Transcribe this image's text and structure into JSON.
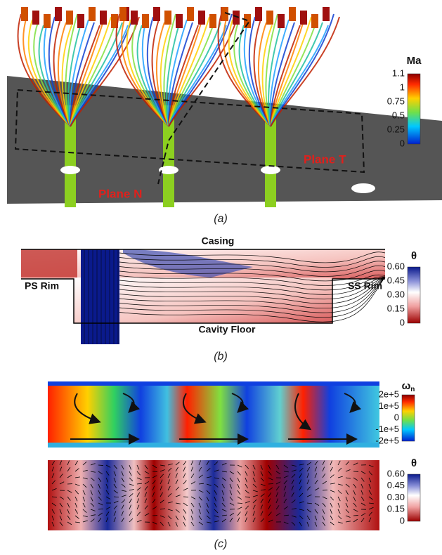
{
  "panel_a": {
    "caption": "(a)",
    "plane_n": "Plane N",
    "plane_t": "Plane T",
    "colorbar": {
      "title": "Ma",
      "ticks": [
        "1.1",
        "1",
        "0.75",
        "0.5",
        "0.25",
        "0"
      ]
    }
  },
  "panel_b": {
    "caption": "(b)",
    "top": "Casing",
    "left": "PS Rim",
    "right": "SS Rim",
    "bottom": "Cavity Floor",
    "colorbar": {
      "title": "θ",
      "ticks": [
        "0.60",
        "0.45",
        "0.30",
        "0.15",
        "0"
      ]
    }
  },
  "panel_c": {
    "caption": "(c)",
    "colorbar_top": {
      "title": "ω",
      "subscript": "n",
      "ticks": [
        "2e+5",
        "1e+5",
        "0",
        "-1e+5",
        "-2e+5"
      ]
    },
    "colorbar_bottom": {
      "title": "θ",
      "ticks": [
        "0.60",
        "0.45",
        "0.30",
        "0.15",
        "0"
      ]
    }
  }
}
